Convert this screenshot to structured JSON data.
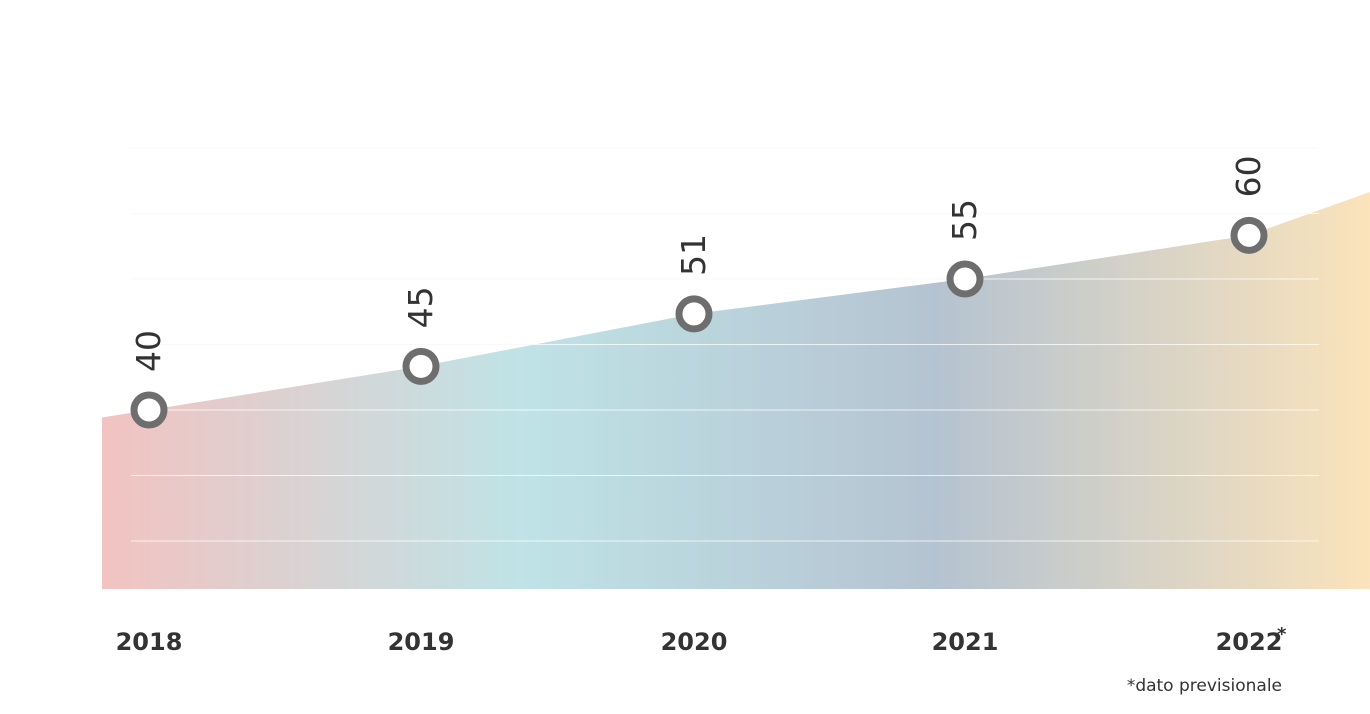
{
  "chart_data": {
    "type": "area",
    "categories": [
      "2018",
      "2019",
      "2020",
      "2021",
      "2022"
    ],
    "category_marks": [
      "",
      "",
      "",
      "",
      "*"
    ],
    "values": [
      40,
      45,
      51,
      55,
      60
    ],
    "data_labels": [
      "40",
      "45",
      "51",
      "55",
      "60"
    ],
    "ylim": [
      25,
      70
    ],
    "grid": true,
    "annotation": "*dato previsionale",
    "colors": {
      "gradient": [
        "#f2c3c1",
        "#bfe3e6",
        "#b5c3d1",
        "#fbe3bb"
      ],
      "marker_stroke": "#6e6e6e",
      "gridline": "#e6e6e6",
      "text": "#333333"
    }
  }
}
